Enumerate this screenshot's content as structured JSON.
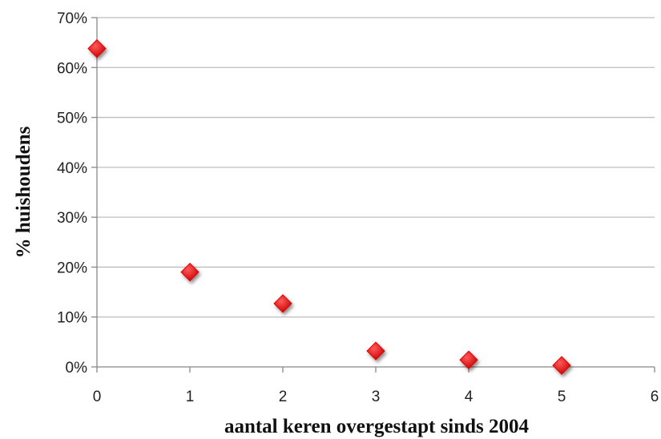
{
  "chart_data": {
    "type": "scatter",
    "title": "",
    "xlabel": "aantal keren overgestapt sinds 2004",
    "ylabel": "% huishoudens",
    "xlim": [
      0,
      6
    ],
    "ylim": [
      0,
      70
    ],
    "x_ticks": [
      "0",
      "1",
      "2",
      "3",
      "4",
      "5",
      "6"
    ],
    "y_ticks": [
      "0%",
      "10%",
      "20%",
      "30%",
      "40%",
      "50%",
      "60%",
      "70%"
    ],
    "grid": "horizontal",
    "legend": "none",
    "series": [
      {
        "marker": "diamond",
        "color": "#e60000",
        "points": [
          {
            "x": 0,
            "y": 63.8
          },
          {
            "x": 1,
            "y": 19.0
          },
          {
            "x": 2,
            "y": 12.7
          },
          {
            "x": 3,
            "y": 3.2
          },
          {
            "x": 4,
            "y": 1.4
          },
          {
            "x": 5,
            "y": 0.3
          }
        ]
      }
    ]
  }
}
